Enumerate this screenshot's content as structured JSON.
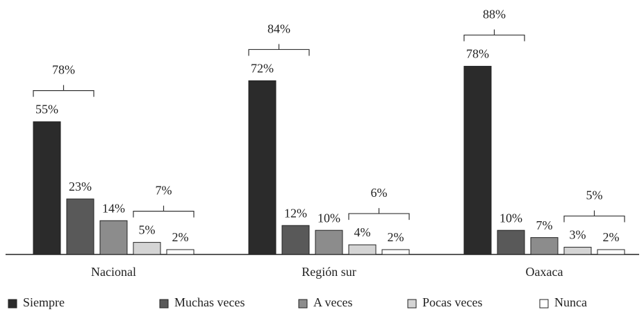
{
  "chart_data": {
    "type": "bar",
    "categories": [
      "Nacional",
      "Región sur",
      "Oaxaca"
    ],
    "series": [
      {
        "name": "Siempre",
        "color": "#2b2b2b",
        "values": [
          55,
          72,
          78
        ],
        "value_labels": [
          "55%",
          "72%",
          "78%"
        ]
      },
      {
        "name": "Muchas veces",
        "color": "#595959",
        "values": [
          23,
          12,
          10
        ],
        "value_labels": [
          "23%",
          "12%",
          "10%"
        ]
      },
      {
        "name": "A veces",
        "color": "#8c8c8c",
        "values": [
          14,
          10,
          7
        ],
        "value_labels": [
          "14%",
          "10%",
          "7%"
        ]
      },
      {
        "name": "Pocas veces",
        "color": "#d4d4d4",
        "values": [
          5,
          4,
          3
        ],
        "value_labels": [
          "5%",
          "4%",
          "3%"
        ]
      },
      {
        "name": "Nunca",
        "color": "#ffffff",
        "values": [
          2,
          2,
          2
        ],
        "value_labels": [
          "2%",
          "2%",
          "2%"
        ]
      }
    ],
    "brackets": [
      {
        "series": [
          0,
          1
        ],
        "values": [
          78,
          84,
          88
        ],
        "value_labels": [
          "78%",
          "84%",
          "88%"
        ]
      },
      {
        "series": [
          3,
          4
        ],
        "values": [
          7,
          6,
          5
        ],
        "value_labels": [
          "7%",
          "6%",
          "5%"
        ]
      }
    ],
    "legend": "bottom"
  }
}
